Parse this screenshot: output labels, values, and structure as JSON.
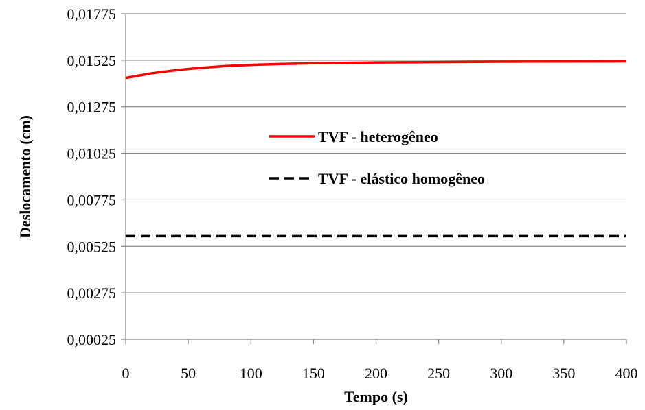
{
  "chart_data": {
    "type": "line",
    "xlabel": "Tempo (s)",
    "ylabel": "Deslocamento (cm)",
    "xlim": [
      0,
      400
    ],
    "ylim": [
      0.00025,
      0.01775
    ],
    "xticks": [
      0,
      50,
      100,
      150,
      200,
      250,
      300,
      350,
      400
    ],
    "yticks": [
      0.00025,
      0.00275,
      0.00525,
      0.00775,
      0.01025,
      0.01275,
      0.01525,
      0.01775
    ],
    "xtick_labels": [
      "0",
      "50",
      "100",
      "150",
      "200",
      "250",
      "300",
      "350",
      "400"
    ],
    "ytick_labels": [
      "0,00025",
      "0,00275",
      "0,00525",
      "0,00775",
      "0,01025",
      "0,01275",
      "0,01525",
      "0,01775"
    ],
    "grid": "horizontal",
    "legend_position": "center",
    "series": [
      {
        "name": "TVF - heterogêneo",
        "color": "#ff0000",
        "style": "solid",
        "x": [
          0,
          10,
          20,
          30,
          40,
          50,
          60,
          80,
          100,
          125,
          150,
          175,
          200,
          250,
          300,
          350,
          400
        ],
        "y": [
          0.0143,
          0.01442,
          0.01454,
          0.01463,
          0.01471,
          0.01478,
          0.01484,
          0.01494,
          0.015,
          0.01505,
          0.01509,
          0.01511,
          0.01513,
          0.01515,
          0.01517,
          0.01518,
          0.01519
        ]
      },
      {
        "name": "TVF - elástico homogêneo",
        "color": "#000000",
        "style": "dashed",
        "x": [
          0,
          400
        ],
        "y": [
          0.0058,
          0.0058
        ]
      }
    ]
  }
}
